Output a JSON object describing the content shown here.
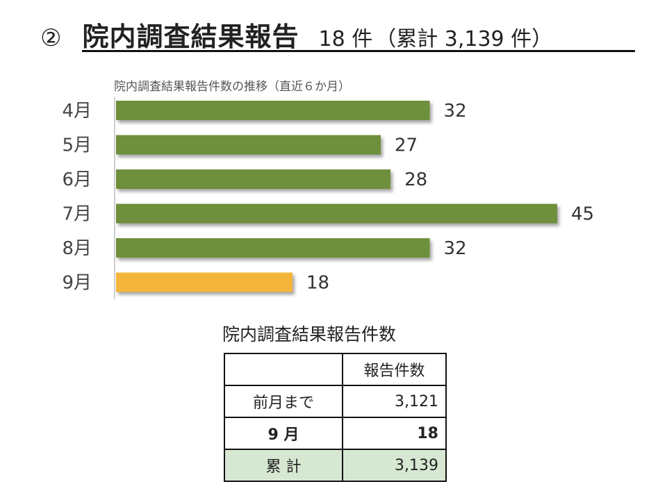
{
  "title": {
    "number": "②",
    "main": "院内調査結果報告",
    "count": "18 件",
    "cumulative": "（累計 3,139 件）"
  },
  "chart_data": {
    "type": "bar",
    "orientation": "horizontal",
    "title": "院内調査結果報告件数の推移（直近６か月）",
    "categories": [
      "4月",
      "5月",
      "6月",
      "7月",
      "8月",
      "9月"
    ],
    "values": [
      32,
      27,
      28,
      45,
      32,
      18
    ],
    "data_labels": [
      "32",
      "27",
      "28",
      "45",
      "32",
      "18"
    ],
    "colors": [
      "#6e8f3a",
      "#6e8f3a",
      "#6e8f3a",
      "#6e8f3a",
      "#6e8f3a",
      "#f4b53a"
    ],
    "xlim": [
      0,
      45
    ],
    "grid": false,
    "legend": "none"
  },
  "table": {
    "title": "院内調査結果報告件数",
    "header": [
      "",
      "報告件数"
    ],
    "rows": [
      {
        "label": "前月まで",
        "value": "3,121"
      },
      {
        "label": "9 月",
        "value": "18"
      },
      {
        "label": "累 計",
        "value": "3,139"
      }
    ],
    "total_bg": "#d6e8d2"
  }
}
